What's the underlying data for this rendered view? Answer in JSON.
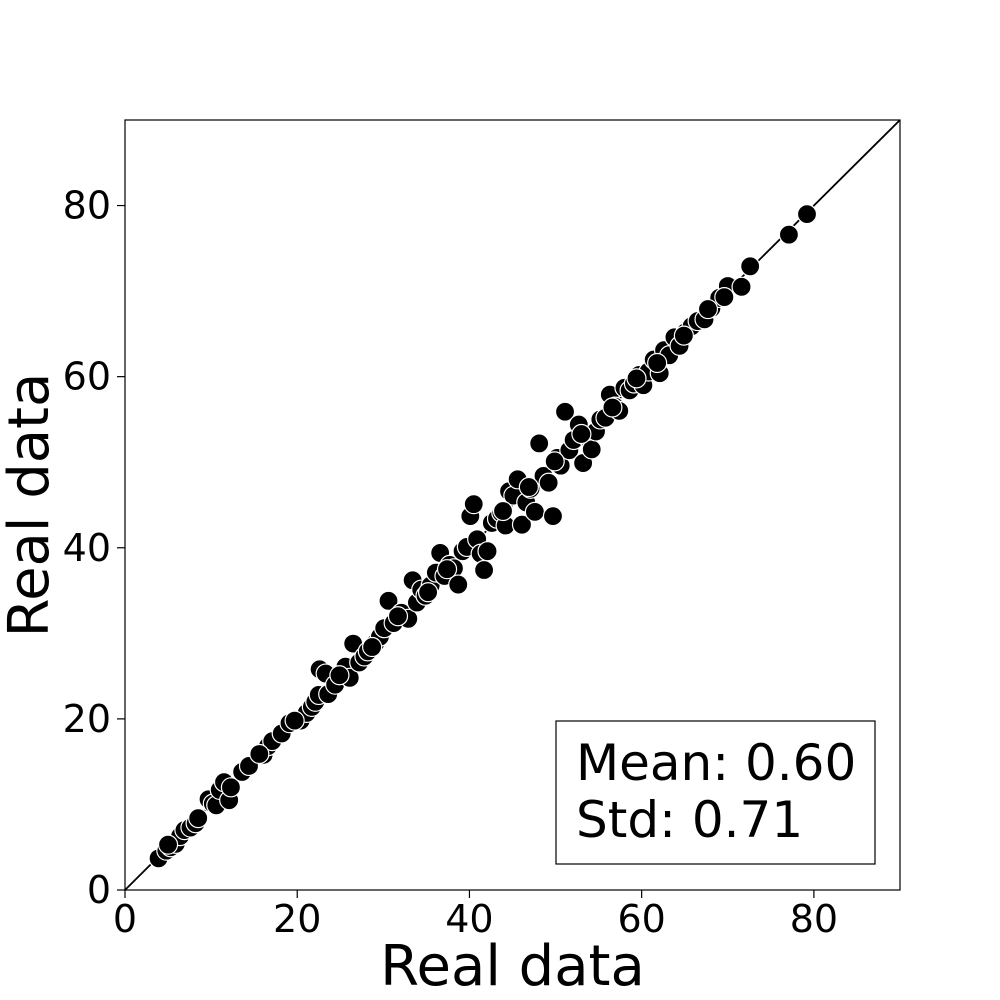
{
  "chart_data": {
    "type": "scatter",
    "xlabel": "Real data",
    "ylabel": "Real data",
    "xlim": [
      0,
      90
    ],
    "ylim": [
      0,
      90
    ],
    "xticks": [
      0,
      20,
      40,
      60,
      80
    ],
    "yticks": [
      0,
      20,
      40,
      60,
      80
    ],
    "grid": false,
    "identity_line": true,
    "marker_color": "#000000",
    "marker_edge_color": "#ffffff",
    "stats": {
      "mean_label": "Mean: 0.60",
      "std_label": "Std: 0.71",
      "placement": "bottom-right"
    },
    "series": [
      {
        "points": [
          [
            3.9,
            3.7
          ],
          [
            4.8,
            4.6
          ],
          [
            5.3,
            5.0
          ],
          [
            5.9,
            5.4
          ],
          [
            6.4,
            6.3
          ],
          [
            6.9,
            7.0
          ],
          [
            7.6,
            7.3
          ],
          [
            8.2,
            7.8
          ],
          [
            9.7,
            10.6
          ],
          [
            10.2,
            10.1
          ],
          [
            10.6,
            9.9
          ],
          [
            11.0,
            11.7
          ],
          [
            11.5,
            12.6
          ],
          [
            12.1,
            10.5
          ],
          [
            13.6,
            13.8
          ],
          [
            14.4,
            14.5
          ],
          [
            16.1,
            15.8
          ],
          [
            16.6,
            16.8
          ],
          [
            17.1,
            17.4
          ],
          [
            18.2,
            18.3
          ],
          [
            19.1,
            19.5
          ],
          [
            20.4,
            19.8
          ],
          [
            21.1,
            20.7
          ],
          [
            21.7,
            21.4
          ],
          [
            22.1,
            22.0
          ],
          [
            22.5,
            22.8
          ],
          [
            22.6,
            25.8
          ],
          [
            23.3,
            25.3
          ],
          [
            23.6,
            22.9
          ],
          [
            24.4,
            24.0
          ],
          [
            25.6,
            26.1
          ],
          [
            26.1,
            24.8
          ],
          [
            26.5,
            28.8
          ],
          [
            27.2,
            26.6
          ],
          [
            27.8,
            27.3
          ],
          [
            28.2,
            27.9
          ],
          [
            29.1,
            28.9
          ],
          [
            29.6,
            29.6
          ],
          [
            30.1,
            30.6
          ],
          [
            30.6,
            33.8
          ],
          [
            31.2,
            31.2
          ],
          [
            32.1,
            32.4
          ],
          [
            32.9,
            31.7
          ],
          [
            33.4,
            36.2
          ],
          [
            33.9,
            33.6
          ],
          [
            34.4,
            35.1
          ],
          [
            34.9,
            34.4
          ],
          [
            35.5,
            35.6
          ],
          [
            36.1,
            37.1
          ],
          [
            36.6,
            39.4
          ],
          [
            37.1,
            36.7
          ],
          [
            37.7,
            38.0
          ],
          [
            38.2,
            37.6
          ],
          [
            38.7,
            35.7
          ],
          [
            39.2,
            39.6
          ],
          [
            39.7,
            40.1
          ],
          [
            40.1,
            43.7
          ],
          [
            40.5,
            45.1
          ],
          [
            40.9,
            41.0
          ],
          [
            41.3,
            39.3
          ],
          [
            41.7,
            37.4
          ],
          [
            42.1,
            39.6
          ],
          [
            42.6,
            42.9
          ],
          [
            43.2,
            43.4
          ],
          [
            43.7,
            44.1
          ],
          [
            44.2,
            42.6
          ],
          [
            44.6,
            46.6
          ],
          [
            45.1,
            46.1
          ],
          [
            45.6,
            48.0
          ],
          [
            46.1,
            42.7
          ],
          [
            46.6,
            45.3
          ],
          [
            47.1,
            46.9
          ],
          [
            47.6,
            44.2
          ],
          [
            48.1,
            52.2
          ],
          [
            48.6,
            48.4
          ],
          [
            49.2,
            47.6
          ],
          [
            49.7,
            43.7
          ],
          [
            50.2,
            50.5
          ],
          [
            50.6,
            49.6
          ],
          [
            51.1,
            55.9
          ],
          [
            51.6,
            51.4
          ],
          [
            52.1,
            52.6
          ],
          [
            52.7,
            54.4
          ],
          [
            53.2,
            49.9
          ],
          [
            53.6,
            53.0
          ],
          [
            54.2,
            51.5
          ],
          [
            54.7,
            53.6
          ],
          [
            55.2,
            55.0
          ],
          [
            55.8,
            55.2
          ],
          [
            56.3,
            57.9
          ],
          [
            56.9,
            56.5
          ],
          [
            57.4,
            56.0
          ],
          [
            58.0,
            58.7
          ],
          [
            58.6,
            58.4
          ],
          [
            59.1,
            59.2
          ],
          [
            59.7,
            60.2
          ],
          [
            60.2,
            59.0
          ],
          [
            60.8,
            60.6
          ],
          [
            61.4,
            62.0
          ],
          [
            62.1,
            60.4
          ],
          [
            62.6,
            63.1
          ],
          [
            63.2,
            62.5
          ],
          [
            63.8,
            64.6
          ],
          [
            64.4,
            63.6
          ],
          [
            65.1,
            65.2
          ],
          [
            65.8,
            65.9
          ],
          [
            66.5,
            66.5
          ],
          [
            67.3,
            66.7
          ],
          [
            68.1,
            68.0
          ],
          [
            69.0,
            69.2
          ],
          [
            70.0,
            70.6
          ],
          [
            71.6,
            70.5
          ],
          [
            72.6,
            72.9
          ],
          [
            77.1,
            76.6
          ],
          [
            79.2,
            79.0
          ],
          [
            5.0,
            5.3
          ],
          [
            8.5,
            8.4
          ],
          [
            12.3,
            12.0
          ],
          [
            15.6,
            15.9
          ],
          [
            19.7,
            19.8
          ],
          [
            24.9,
            25.1
          ],
          [
            28.7,
            28.4
          ],
          [
            31.7,
            32.0
          ],
          [
            35.2,
            34.8
          ],
          [
            37.4,
            37.5
          ],
          [
            43.9,
            44.3
          ],
          [
            46.9,
            47.1
          ],
          [
            49.9,
            50.1
          ],
          [
            53.0,
            53.3
          ],
          [
            56.6,
            56.4
          ],
          [
            59.4,
            59.8
          ],
          [
            61.8,
            61.6
          ],
          [
            64.9,
            64.8
          ],
          [
            67.7,
            67.9
          ],
          [
            69.6,
            69.3
          ]
        ]
      }
    ]
  }
}
